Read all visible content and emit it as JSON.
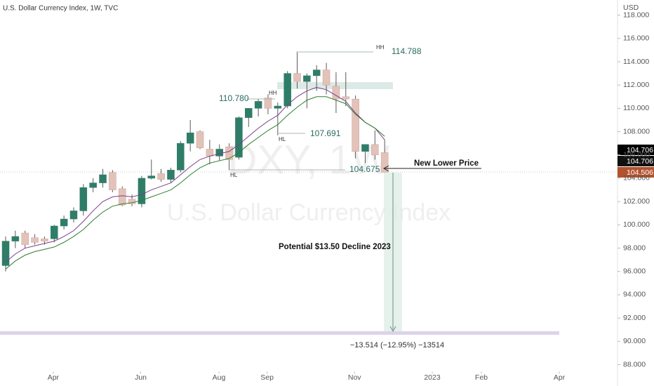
{
  "chart_data": {
    "type": "candlestick",
    "title": "U.S. Dollar Currency Index, 1W, TVC",
    "currency": "USD",
    "watermark": [
      "DXY, 1W",
      "U.S. Dollar Currency Index"
    ],
    "x": [
      0,
      1,
      2,
      3,
      4,
      5,
      6,
      7,
      8,
      9,
      10,
      11,
      12,
      13,
      14,
      15,
      16,
      17,
      18,
      19,
      20,
      21,
      22,
      23,
      24,
      25,
      26,
      27,
      28,
      29,
      30,
      31,
      32,
      33,
      34,
      35,
      36,
      37,
      38,
      39
    ],
    "open": [
      96.5,
      98.6,
      99.3,
      98.9,
      98.8,
      98.8,
      99.9,
      100.5,
      101.2,
      103.2,
      103.6,
      104.5,
      103.1,
      102.2,
      101.8,
      104.0,
      104.4,
      103.9,
      104.7,
      107.0,
      108.0,
      106.5,
      105.9,
      106.7,
      105.8,
      109.2,
      110.0,
      110.9,
      110.0,
      110.2,
      113.0,
      112.3,
      112.8,
      113.3,
      111.9,
      111.0,
      110.8,
      106.3,
      106.9,
      106.2
    ],
    "high": [
      99.0,
      99.5,
      99.5,
      99.2,
      99.0,
      100.0,
      100.8,
      101.5,
      103.5,
      104.0,
      104.8,
      104.7,
      103.3,
      102.6,
      104.2,
      105.6,
      104.8,
      104.9,
      107.2,
      109.0,
      108.1,
      107.3,
      106.9,
      107.0,
      109.3,
      110.0,
      110.8,
      111.2,
      110.5,
      113.2,
      114.788,
      113.0,
      113.7,
      113.9,
      113.1,
      113.1,
      111.1,
      106.9,
      108.1,
      107.3
    ],
    "low": [
      96.0,
      98.0,
      98.0,
      98.3,
      98.3,
      98.5,
      99.6,
      100.2,
      100.8,
      102.8,
      103.2,
      102.8,
      101.6,
      101.6,
      101.5,
      103.9,
      103.7,
      103.6,
      104.5,
      106.3,
      106.5,
      105.2,
      105.5,
      104.675,
      105.6,
      108.4,
      109.3,
      109.5,
      107.691,
      110.0,
      111.7,
      110.0,
      111.5,
      111.2,
      109.6,
      110.2,
      105.7,
      105.3,
      105.6,
      104.5
    ],
    "close": [
      98.6,
      99.0,
      98.3,
      98.5,
      98.6,
      99.9,
      100.5,
      101.2,
      103.2,
      103.6,
      104.3,
      103.0,
      101.7,
      101.8,
      104.0,
      104.2,
      103.9,
      104.7,
      107.0,
      107.9,
      106.6,
      105.9,
      106.5,
      105.6,
      109.2,
      110.0,
      110.6,
      110.0,
      110.2,
      113.0,
      112.3,
      112.8,
      113.3,
      112.0,
      110.8,
      110.8,
      106.3,
      106.9,
      106.0,
      104.506
    ],
    "up_color": "#2f7d69",
    "down_color": "#e3c2b9",
    "wick_color": "#5a5a5a",
    "lines": [
      {
        "color": "#7b3f86",
        "values": [
          96.8,
          97.5,
          98.0,
          98.2,
          98.4,
          98.6,
          99.0,
          99.5,
          100.3,
          101.2,
          102.0,
          102.4,
          102.5,
          102.4,
          102.6,
          103.0,
          103.3,
          103.6,
          104.3,
          105.0,
          105.6,
          105.9,
          106.1,
          106.3,
          106.9,
          107.6,
          108.3,
          108.9,
          109.4,
          110.3,
          111.0,
          111.5,
          111.8,
          111.6,
          111.1,
          110.6,
          109.6,
          108.8,
          108.3,
          107.3
        ]
      },
      {
        "color": "#2e7d32",
        "values": [
          96.2,
          96.9,
          97.4,
          97.7,
          97.9,
          98.1,
          98.5,
          99.0,
          99.6,
          100.4,
          101.1,
          101.6,
          101.8,
          101.9,
          102.1,
          102.4,
          102.7,
          103.0,
          103.6,
          104.3,
          104.9,
          105.3,
          105.5,
          105.7,
          106.2,
          106.9,
          107.5,
          108.1,
          108.6,
          109.4,
          110.1,
          110.7,
          111.0,
          111.0,
          110.7,
          110.4,
          109.5,
          108.8,
          108.3,
          107.6
        ]
      }
    ],
    "xlim": [
      -0.58,
      62.96
    ],
    "xticks": [
      {
        "value": 4.9,
        "label": "Apr"
      },
      {
        "value": 13.9,
        "label": "Jun"
      },
      {
        "value": 21.95,
        "label": "Aug"
      },
      {
        "value": 26.9,
        "label": "Sep"
      },
      {
        "value": 35.9,
        "label": "Nov"
      },
      {
        "value": 43.9,
        "label": "2023"
      },
      {
        "value": 48.95,
        "label": "Feb"
      },
      {
        "value": 56.97,
        "label": "Apr"
      }
    ],
    "ylim": [
      87.4,
      119.3
    ],
    "yticks": [
      {
        "value": 88,
        "label": "88.000"
      },
      {
        "value": 90,
        "label": "90.000"
      },
      {
        "value": 92,
        "label": "92.000"
      },
      {
        "value": 94,
        "label": "94.000"
      },
      {
        "value": 96,
        "label": "96.000"
      },
      {
        "value": 98,
        "label": "98.000"
      },
      {
        "value": 100,
        "label": "100.000"
      },
      {
        "value": 102,
        "label": "102.000"
      },
      {
        "value": 104,
        "label": "104.000"
      },
      {
        "value": 106,
        "label": "106.000"
      },
      {
        "value": 108,
        "label": "108.000"
      },
      {
        "value": 110,
        "label": "110.000"
      },
      {
        "value": 112,
        "label": "112.000"
      },
      {
        "value": 114,
        "label": "114.000"
      },
      {
        "value": 116,
        "label": "116.000"
      },
      {
        "value": 118,
        "label": "118.000"
      }
    ],
    "price_labels": [
      "104.706",
      "104.706",
      "104.506"
    ],
    "annotations": {
      "hh_top": "HH",
      "high_label": "114.788",
      "hh_mid": "HH",
      "mid_label": "110.780",
      "hl_mid": "HL",
      "hl_mid_label": "107.691",
      "hl_low": "HL",
      "low_label": "104.675",
      "new_lower": "New Lower Price",
      "decline": "Potential $13.50 Decline 2023",
      "measure": "−13.514 (−12.95%) −13514"
    }
  }
}
